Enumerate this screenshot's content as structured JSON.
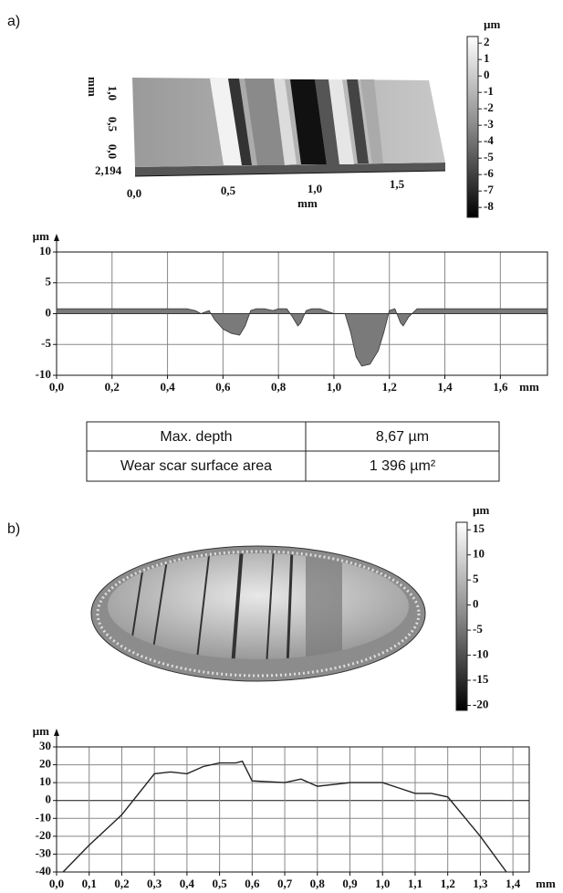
{
  "panels": [
    {
      "label": "a)"
    },
    {
      "label": "b)"
    }
  ],
  "surface_a": {
    "y_label": "mm",
    "y_ticks": [
      "1,0",
      "0,5",
      "0,0"
    ],
    "z_label": "2,194",
    "x_ticks": [
      "0,0",
      "0,5",
      "1,0",
      "1,5"
    ],
    "x_label": "mm"
  },
  "table": {
    "rows": [
      [
        "Max. depth",
        "8,67 µm"
      ],
      [
        "Wear scar surface area",
        "1 396 µm²"
      ]
    ]
  },
  "chart_data": [
    {
      "type": "colorbar",
      "title": "µm",
      "ylim": [
        2.4,
        -8.6
      ],
      "yticks": [
        2,
        1,
        0,
        -1,
        -2,
        -3,
        -4,
        -5,
        -6,
        -7,
        -8
      ]
    },
    {
      "type": "area",
      "y_label": "µm",
      "x_label": "mm",
      "color": "#7a7a7a",
      "x": [
        0,
        0.47,
        0.5,
        0.52,
        0.55,
        0.57,
        0.6,
        0.63,
        0.66,
        0.68,
        0.7,
        0.72,
        0.75,
        0.78,
        0.8,
        0.83,
        0.85,
        0.87,
        0.88,
        0.9,
        0.92,
        0.95,
        1.0,
        1.04,
        1.06,
        1.08,
        1.1,
        1.13,
        1.16,
        1.18,
        1.2,
        1.22,
        1.24,
        1.25,
        1.27,
        1.3,
        1.32,
        1.77
      ],
      "values": [
        0.8,
        0.8,
        0.5,
        0,
        0.5,
        -1,
        -2.5,
        -3.2,
        -3.5,
        -2,
        0.5,
        0.8,
        0.8,
        0.5,
        0.8,
        0.8,
        -0.5,
        -2,
        -1.5,
        0.5,
        0.8,
        0.8,
        0,
        0,
        -3,
        -7,
        -8.5,
        -8.2,
        -6,
        -3,
        0.5,
        0.8,
        -1.5,
        -2,
        -0.5,
        0.8,
        0.8,
        0.8
      ],
      "xlim": [
        0,
        1.77
      ],
      "ylim": [
        -10,
        10
      ],
      "xticks": [
        {
          "value": 0,
          "label": "0,0"
        },
        {
          "value": 0.2,
          "label": "0,2"
        },
        {
          "value": 0.4,
          "label": "0,4"
        },
        {
          "value": 0.6,
          "label": "0,6"
        },
        {
          "value": 0.8,
          "label": "0,8"
        },
        {
          "value": 1.0,
          "label": "1,0"
        },
        {
          "value": 1.2,
          "label": "1,2"
        },
        {
          "value": 1.4,
          "label": "1,4"
        },
        {
          "value": 1.6,
          "label": "1,6"
        }
      ],
      "yticks": [
        -10,
        -5,
        0,
        5,
        10
      ],
      "grid": true
    },
    {
      "type": "colorbar",
      "title": "µm",
      "ylim": [
        16.5,
        -21
      ],
      "yticks": [
        15,
        10,
        5,
        0,
        -5,
        -10,
        -15,
        -20
      ]
    },
    {
      "type": "line",
      "y_label": "µm",
      "x_label": "mm",
      "color": "#222222",
      "x": [
        0.02,
        0.1,
        0.2,
        0.3,
        0.35,
        0.4,
        0.45,
        0.5,
        0.55,
        0.57,
        0.6,
        0.7,
        0.75,
        0.8,
        0.9,
        1.0,
        1.05,
        1.1,
        1.15,
        1.2,
        1.3,
        1.38
      ],
      "values": [
        -40,
        -25,
        -8,
        15,
        16,
        15,
        19,
        21,
        21,
        22,
        11,
        10,
        12,
        8,
        10,
        10,
        7,
        4,
        4,
        2,
        -20,
        -40
      ],
      "xlim": [
        0,
        1.45
      ],
      "ylim": [
        -40,
        30
      ],
      "xticks": [
        {
          "value": 0,
          "label": "0,0"
        },
        {
          "value": 0.1,
          "label": "0,1"
        },
        {
          "value": 0.2,
          "label": "0,2"
        },
        {
          "value": 0.3,
          "label": "0,3"
        },
        {
          "value": 0.4,
          "label": "0,4"
        },
        {
          "value": 0.5,
          "label": "0,5"
        },
        {
          "value": 0.6,
          "label": "0,6"
        },
        {
          "value": 0.7,
          "label": "0,7"
        },
        {
          "value": 0.8,
          "label": "0,8"
        },
        {
          "value": 0.9,
          "label": "0,9"
        },
        {
          "value": 1.0,
          "label": "1,0"
        },
        {
          "value": 1.1,
          "label": "1,1"
        },
        {
          "value": 1.2,
          "label": "1,2"
        },
        {
          "value": 1.3,
          "label": "1,3"
        },
        {
          "value": 1.4,
          "label": "1,4"
        }
      ],
      "yticks": [
        -40,
        -30,
        -20,
        -10,
        0,
        10,
        20,
        30
      ],
      "grid": true
    }
  ]
}
